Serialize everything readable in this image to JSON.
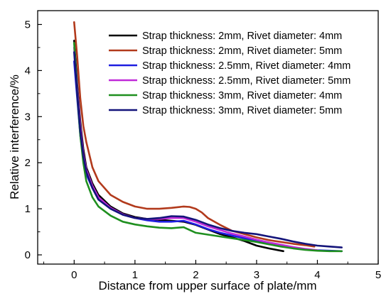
{
  "chart_data": {
    "type": "line",
    "xlabel": "Distance from upper surface of plate/mm",
    "ylabel": "Relative interference/%",
    "xlim": [
      -0.6,
      5.0
    ],
    "ylim": [
      -0.2,
      5.3
    ],
    "xticks": [
      "0",
      "1",
      "2",
      "3",
      "4",
      "5"
    ],
    "yticks": [
      "0",
      "1",
      "2",
      "3",
      "4",
      "5"
    ],
    "legend_position": "top-right",
    "series": [
      {
        "name": "Strap thickness: 2mm, Rivet diameter: 4mm",
        "color": "#000000",
        "x": [
          0.0,
          0.05,
          0.1,
          0.15,
          0.2,
          0.3,
          0.4,
          0.6,
          0.8,
          1.0,
          1.2,
          1.4,
          1.6,
          1.8,
          2.0,
          2.2,
          2.4,
          2.6,
          2.8,
          3.0,
          3.2,
          3.44
        ],
        "y": [
          4.65,
          3.7,
          2.9,
          2.3,
          1.9,
          1.55,
          1.3,
          1.05,
          0.9,
          0.82,
          0.78,
          0.76,
          0.74,
          0.72,
          0.65,
          0.55,
          0.45,
          0.38,
          0.3,
          0.2,
          0.14,
          0.08
        ]
      },
      {
        "name": "Strap thickness: 2mm, Rivet diameter: 5mm",
        "color": "#b23a1c",
        "x": [
          0.0,
          0.05,
          0.1,
          0.15,
          0.2,
          0.3,
          0.4,
          0.6,
          0.8,
          1.0,
          1.2,
          1.4,
          1.6,
          1.8,
          1.9,
          2.0,
          2.1,
          2.2,
          2.4,
          2.6,
          2.8,
          3.0,
          3.2,
          3.4,
          3.6,
          3.8,
          3.95
        ],
        "y": [
          5.05,
          4.3,
          3.4,
          2.8,
          2.45,
          1.9,
          1.6,
          1.3,
          1.15,
          1.05,
          1.0,
          1.0,
          1.02,
          1.05,
          1.04,
          1.0,
          0.92,
          0.8,
          0.65,
          0.52,
          0.45,
          0.38,
          0.32,
          0.28,
          0.24,
          0.21,
          0.18
        ]
      },
      {
        "name": "Strap thickness: 2.5mm, Rivet diameter: 4mm",
        "color": "#1e1ee0",
        "x": [
          0.0,
          0.05,
          0.1,
          0.15,
          0.2,
          0.3,
          0.4,
          0.6,
          0.8,
          1.0,
          1.2,
          1.4,
          1.6,
          1.8,
          2.0,
          2.2,
          2.4,
          2.6,
          2.8,
          3.0,
          3.2,
          3.4,
          3.6,
          3.8,
          4.0,
          4.2,
          4.4
        ],
        "y": [
          4.2,
          3.4,
          2.6,
          2.1,
          1.75,
          1.45,
          1.2,
          1.0,
          0.87,
          0.8,
          0.75,
          0.72,
          0.72,
          0.74,
          0.66,
          0.56,
          0.48,
          0.42,
          0.36,
          0.3,
          0.24,
          0.19,
          0.15,
          0.12,
          0.1,
          0.09,
          0.08
        ]
      },
      {
        "name": "Strap thickness: 2.5mm, Rivet diameter: 5mm",
        "color": "#c02ad8",
        "x": [
          0.0,
          0.05,
          0.1,
          0.15,
          0.2,
          0.3,
          0.4,
          0.6,
          0.8,
          1.0,
          1.2,
          1.4,
          1.6,
          1.8,
          2.0,
          2.2,
          2.4,
          2.6,
          2.8,
          3.0,
          3.2,
          3.4,
          3.6,
          3.8,
          4.0
        ],
        "y": [
          4.5,
          3.6,
          2.8,
          2.2,
          1.85,
          1.5,
          1.25,
          1.02,
          0.88,
          0.8,
          0.78,
          0.78,
          0.8,
          0.8,
          0.72,
          0.62,
          0.54,
          0.46,
          0.4,
          0.33,
          0.27,
          0.22,
          0.17,
          0.13,
          0.1
        ]
      },
      {
        "name": "Strap thickness: 3mm, Rivet diameter: 4mm",
        "color": "#1f8f1f",
        "x": [
          0.0,
          0.05,
          0.1,
          0.15,
          0.2,
          0.3,
          0.4,
          0.6,
          0.8,
          1.0,
          1.2,
          1.4,
          1.6,
          1.8,
          2.0,
          2.2,
          2.4,
          2.6,
          2.8,
          3.0,
          3.2,
          3.4,
          3.6,
          3.8,
          4.0,
          4.2,
          4.4
        ],
        "y": [
          4.6,
          3.5,
          2.6,
          2.0,
          1.6,
          1.25,
          1.05,
          0.85,
          0.72,
          0.66,
          0.62,
          0.59,
          0.58,
          0.6,
          0.48,
          0.44,
          0.4,
          0.36,
          0.32,
          0.28,
          0.23,
          0.18,
          0.14,
          0.11,
          0.09,
          0.08,
          0.08
        ]
      },
      {
        "name": "Strap thickness: 3mm, Rivet diameter: 5mm",
        "color": "#14147a",
        "x": [
          0.0,
          0.05,
          0.1,
          0.15,
          0.2,
          0.3,
          0.4,
          0.6,
          0.8,
          1.0,
          1.2,
          1.4,
          1.6,
          1.8,
          2.0,
          2.2,
          2.4,
          2.6,
          2.8,
          3.0,
          3.2,
          3.4,
          3.6,
          3.8,
          4.0,
          4.2,
          4.4
        ],
        "y": [
          4.4,
          3.5,
          2.7,
          2.15,
          1.8,
          1.45,
          1.2,
          1.0,
          0.87,
          0.8,
          0.78,
          0.8,
          0.84,
          0.83,
          0.76,
          0.66,
          0.58,
          0.52,
          0.48,
          0.45,
          0.4,
          0.35,
          0.29,
          0.24,
          0.2,
          0.18,
          0.16
        ]
      }
    ]
  }
}
